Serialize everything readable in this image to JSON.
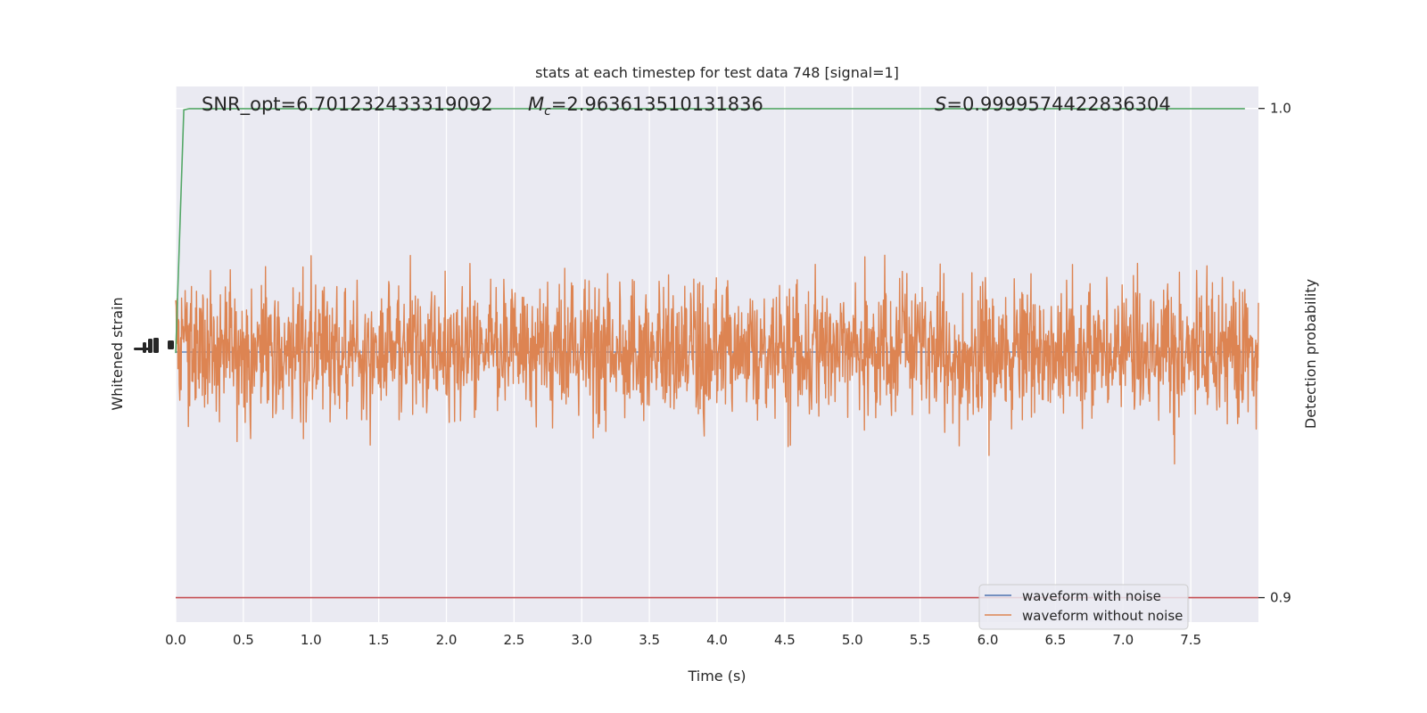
{
  "chart_data": {
    "type": "line",
    "title": "stats at each timestep for test data 748 [signal=1]",
    "xlabel": "Time (s)",
    "ylabel_left": "Whitened strain",
    "ylabel_right": "Detection probability",
    "xlim": [
      0,
      8
    ],
    "x_ticks": [
      "0.0",
      "0.5",
      "1.0",
      "1.5",
      "2.0",
      "2.5",
      "3.0",
      "3.5",
      "4.0",
      "4.5",
      "5.0",
      "5.5",
      "6.0",
      "6.5",
      "7.0",
      "7.5"
    ],
    "y_right_ticks": [
      "1.0",
      "0.9"
    ],
    "y_right_lim": [
      0.895,
      1.0045
    ],
    "grid": true,
    "legend_position": "lower-right",
    "annotations": {
      "snr": "SNR_opt=6.701232433319092",
      "mc_symbol": "M",
      "mc_sub": "c",
      "mc_value": "=2.963613510131836",
      "s_symbol": "S",
      "s_value": "=0.9999574422836304"
    },
    "series": [
      {
        "name": "waveform with noise",
        "color": "#4c72b0",
        "kind": "strain",
        "amplitude_estimate": 0.5
      },
      {
        "name": "waveform without noise",
        "color": "#dd8452",
        "kind": "strain",
        "amplitude_estimate": 0.5
      }
    ],
    "detection_probability": {
      "color": "#55a868",
      "points": [
        [
          0,
          0.95
        ],
        [
          0.06,
          0.9997
        ],
        [
          0.1,
          0.99996
        ],
        [
          7.9,
          0.99996
        ]
      ]
    },
    "threshold": {
      "value": 0.9,
      "color": "#c44e52"
    }
  }
}
